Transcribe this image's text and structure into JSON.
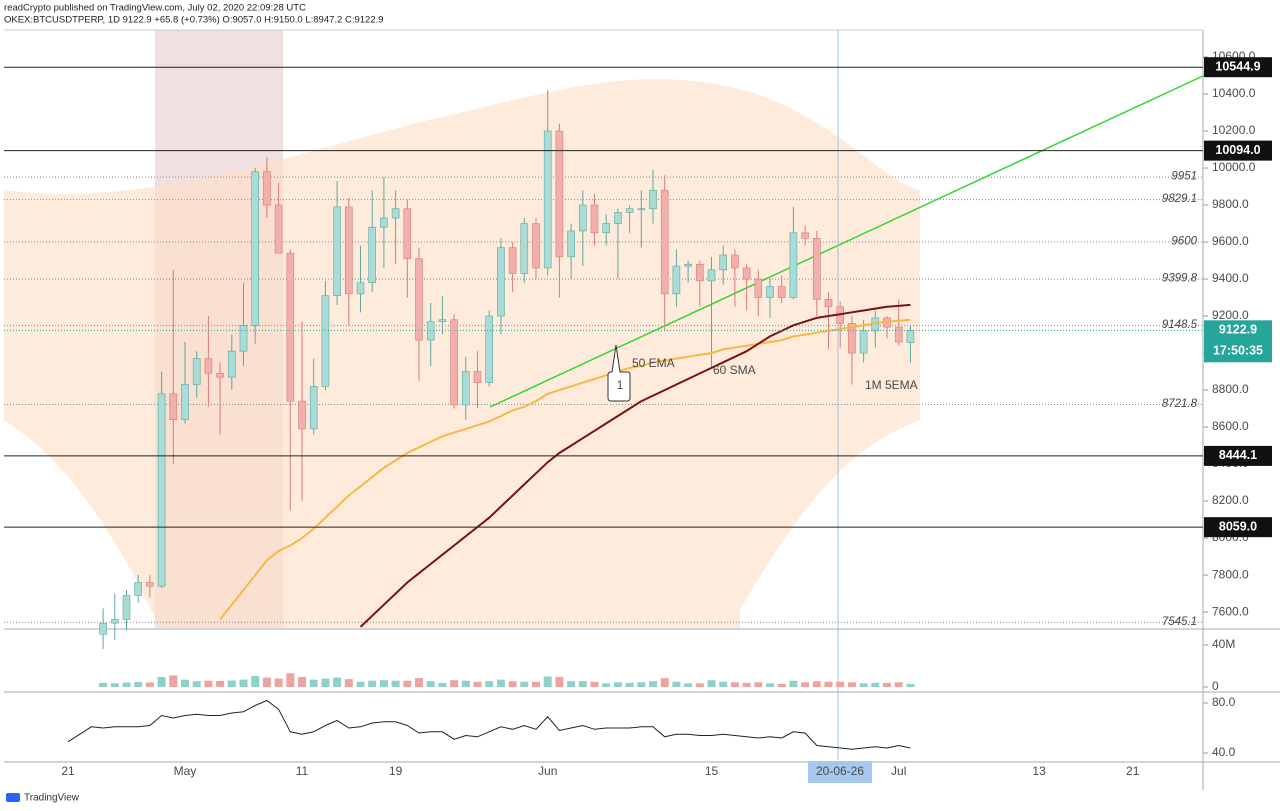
{
  "header": {
    "publisher": "readCrypto published on TradingView.com, July 02, 2020 22:09:28 UTC",
    "quote": "OKEX:BTCUSDTPERP, 1D 9122.9 +65.8 (+0.73%) O:9057.0 H:9150.0 L:8947.2 C:9122.9"
  },
  "footer": "TradingView",
  "chart_data": [
    {
      "type": "candlestick",
      "categories": [
        "21",
        null,
        null,
        null,
        null,
        null,
        null,
        null,
        null,
        null,
        "May",
        null,
        null,
        null,
        null,
        null,
        null,
        null,
        null,
        null,
        "11",
        null,
        null,
        null,
        null,
        null,
        null,
        null,
        "19",
        null,
        null,
        null,
        null,
        null,
        null,
        null,
        null,
        null,
        null,
        null,
        null,
        "Jun",
        null,
        null,
        null,
        null,
        null,
        null,
        null,
        null,
        null,
        null,
        null,
        null,
        null,
        "15",
        null,
        null,
        null,
        null,
        null,
        null,
        null,
        null,
        null,
        null,
        null,
        null,
        null,
        null,
        null,
        "Jul",
        null,
        null,
        null,
        null,
        null,
        null,
        null,
        null,
        null,
        null,
        null,
        "13",
        null,
        null,
        null,
        null,
        null,
        null,
        null,
        "21"
      ],
      "open": [
        null,
        null,
        null,
        7480,
        7540,
        7560,
        7690,
        7760,
        7740,
        8780,
        8640,
        8830,
        8970,
        8890,
        8870,
        9010,
        9150,
        9980,
        9800,
        9540,
        8740,
        8590,
        8820,
        9310,
        9790,
        9320,
        9380,
        9680,
        9730,
        9780,
        9510,
        9070,
        9170,
        9180,
        8720,
        8900,
        8840,
        9200,
        9570,
        9430,
        9700,
        9460,
        10200,
        9520,
        9660,
        9800,
        9650,
        9700,
        9760,
        9780,
        9780,
        9880,
        9320,
        9470,
        9480,
        9390,
        9450,
        9530,
        9460,
        9400,
        9300,
        9360,
        9300,
        9650,
        9620,
        9290,
        9250,
        9160,
        9000,
        9120,
        9190,
        9140,
        9057,
        null,
        null,
        null,
        null,
        null,
        null,
        null,
        null,
        null,
        null,
        null,
        null,
        null,
        null,
        null,
        null,
        null,
        null,
        null
      ],
      "high": [
        null,
        null,
        null,
        7620,
        7700,
        7720,
        7800,
        7800,
        8900,
        9450,
        9060,
        9010,
        9200,
        8950,
        9100,
        9380,
        10000,
        10060,
        9920,
        9560,
        9170,
        8970,
        9390,
        9930,
        9840,
        9580,
        9880,
        9950,
        9880,
        9830,
        9570,
        9270,
        9310,
        9210,
        8980,
        9010,
        9230,
        9620,
        9600,
        9730,
        9730,
        10420,
        10240,
        9700,
        9880,
        9860,
        9750,
        9780,
        9800,
        9880,
        9990,
        9960,
        9560,
        9500,
        9500,
        9520,
        9580,
        9560,
        9480,
        9450,
        9400,
        9420,
        9790,
        9690,
        9660,
        9330,
        9280,
        9200,
        9180,
        9230,
        9200,
        9290,
        9150,
        null,
        null,
        null,
        null,
        null,
        null,
        null,
        null,
        null,
        null,
        null,
        null,
        null,
        null,
        null,
        null,
        null,
        null,
        null
      ],
      "low": [
        null,
        null,
        null,
        7400,
        7450,
        7500,
        7650,
        7680,
        7730,
        8400,
        8620,
        8760,
        8710,
        8560,
        8800,
        8930,
        9050,
        9730,
        9540,
        8150,
        8200,
        8560,
        8800,
        9260,
        9150,
        9220,
        9330,
        9460,
        9480,
        9300,
        8850,
        8930,
        9100,
        8700,
        8640,
        8700,
        8820,
        9100,
        9330,
        9380,
        9400,
        9420,
        9300,
        9400,
        9470,
        9580,
        9580,
        9400,
        9650,
        9570,
        9700,
        9120,
        9250,
        9380,
        9250,
        8920,
        9370,
        9250,
        9230,
        9200,
        9190,
        9270,
        9290,
        9580,
        9200,
        9020,
        9030,
        8830,
        8950,
        9030,
        9080,
        9040,
        8947.2,
        null,
        null,
        null,
        null,
        null,
        null,
        null,
        null,
        null,
        null,
        null,
        null,
        null,
        null,
        null,
        null,
        null,
        null,
        null
      ],
      "close": [
        null,
        null,
        null,
        7540,
        7560,
        7690,
        7760,
        7740,
        8780,
        8640,
        8830,
        8970,
        8890,
        8870,
        9010,
        9150,
        9980,
        9800,
        9540,
        8740,
        8590,
        8820,
        9310,
        9790,
        9320,
        9380,
        9680,
        9730,
        9780,
        9510,
        9070,
        9170,
        9180,
        8720,
        8900,
        8840,
        9200,
        9570,
        9430,
        9700,
        9460,
        10200,
        9520,
        9660,
        9800,
        9650,
        9700,
        9760,
        9780,
        9780,
        9880,
        9320,
        9470,
        9480,
        9390,
        9450,
        9530,
        9460,
        9400,
        9300,
        9360,
        9300,
        9650,
        9620,
        9290,
        9250,
        9160,
        9000,
        9120,
        9190,
        9140,
        9060,
        9122.9,
        null,
        null,
        null,
        null,
        null,
        null,
        null,
        null,
        null,
        null,
        null,
        null,
        null,
        null,
        null,
        null,
        null,
        null,
        null
      ],
      "up_color": "#a9dcd6",
      "down_color": "#f2b0ad",
      "series": [
        {
          "name": "50 EMA",
          "color": "#f7b844",
          "values": [
            null,
            null,
            null,
            null,
            null,
            null,
            null,
            null,
            null,
            null,
            null,
            null,
            null,
            7560,
            7640,
            7720,
            7800,
            7880,
            7930,
            7960,
            8000,
            8050,
            8110,
            8170,
            8230,
            8280,
            8330,
            8380,
            8420,
            8460,
            8490,
            8520,
            8550,
            8570,
            8590,
            8610,
            8630,
            8660,
            8690,
            8710,
            8740,
            8780,
            8800,
            8820,
            8840,
            8860,
            8880,
            8900,
            8920,
            8930,
            8950,
            8960,
            8970,
            8980,
            8990,
            9000,
            9020,
            9030,
            9040,
            9050,
            9060,
            9070,
            9090,
            9100,
            9110,
            9120,
            9130,
            9140,
            9150,
            9160,
            9170,
            9175,
            9180,
            null,
            null,
            null,
            null,
            null,
            null,
            null,
            null,
            null,
            null,
            null,
            null,
            null,
            null,
            null,
            null,
            null,
            null,
            null
          ]
        },
        {
          "name": "60 SMA",
          "color": "#7a1212",
          "values": [
            null,
            null,
            null,
            null,
            null,
            null,
            null,
            null,
            null,
            null,
            null,
            null,
            null,
            null,
            null,
            null,
            null,
            null,
            null,
            null,
            null,
            null,
            null,
            null,
            null,
            7520,
            7580,
            7640,
            7700,
            7760,
            7810,
            7860,
            7910,
            7960,
            8010,
            8060,
            8110,
            8170,
            8230,
            8290,
            8350,
            8410,
            8460,
            8500,
            8540,
            8580,
            8620,
            8660,
            8700,
            8740,
            8770,
            8800,
            8830,
            8860,
            8890,
            8920,
            8950,
            8980,
            9010,
            9050,
            9090,
            9120,
            9150,
            9170,
            9190,
            9200,
            9210,
            9220,
            9230,
            9240,
            9250,
            9255,
            9260,
            null,
            null,
            null,
            null,
            null,
            null,
            null,
            null,
            null,
            null,
            null,
            null,
            null,
            null,
            null,
            null,
            null,
            null,
            null
          ]
        }
      ],
      "annotations": [
        "1M 5EMA",
        "1"
      ],
      "ylim": [
        7514,
        10746
      ],
      "yticks": [
        {
          "value": 7600,
          "label": "7600.0"
        },
        {
          "value": 7800,
          "label": "7800.0"
        },
        {
          "value": 8000,
          "label": "8000.0"
        },
        {
          "value": 8200,
          "label": "8200.0"
        },
        {
          "value": 8400,
          "label": "8400.0"
        },
        {
          "value": 8600,
          "label": "8600.0"
        },
        {
          "value": 8800,
          "label": "8800.0"
        },
        {
          "value": 9000,
          "label": "9000.0"
        },
        {
          "value": 9200,
          "label": "9200.0"
        },
        {
          "value": 9400,
          "label": "9400.0"
        },
        {
          "value": 9600,
          "label": "9600.0"
        },
        {
          "value": 9800,
          "label": "9800.0"
        },
        {
          "value": 10000,
          "label": "10000.0"
        },
        {
          "value": 10200,
          "label": "10200.0"
        },
        {
          "value": 10400,
          "label": "10400.0"
        },
        {
          "value": 10600,
          "label": "10600.0"
        }
      ],
      "levels": [
        9951,
        9829.1,
        9600,
        9399.8,
        9148.5,
        8721.8,
        7545.1
      ],
      "boxed_levels": [
        10544.9,
        {
          "value": 10094,
          "label": "10094.0"
        },
        8444.1,
        {
          "value": 8059,
          "label": "8059.0"
        }
      ],
      "last_price": 9122.9,
      "last_price_color": "#26a69a",
      "countdown": "17:50:35",
      "crosshair_label": "20-06-26"
    },
    {
      "type": "volume",
      "values": [
        null,
        null,
        null,
        4000000,
        3500000,
        4200000,
        4800000,
        4300000,
        9500000,
        11000000,
        7000000,
        5500000,
        6000000,
        5800000,
        6200000,
        7000000,
        10500000,
        9000000,
        8000000,
        13000000,
        9500000,
        7000000,
        8000000,
        9000000,
        7500000,
        5000000,
        6000000,
        6500000,
        6000000,
        6000000,
        8500000,
        5500000,
        4000000,
        6500000,
        6000000,
        5000000,
        5500000,
        7000000,
        5500000,
        5000000,
        5000000,
        10000000,
        9500000,
        5500000,
        5500000,
        5000000,
        3500000,
        4500000,
        4000000,
        4500000,
        5500000,
        8500000,
        5000000,
        3500000,
        3500000,
        6500000,
        5000000,
        4500000,
        4000000,
        4500000,
        3500000,
        3000000,
        6000000,
        4500000,
        5500000,
        5000000,
        5000000,
        4500000,
        3500000,
        4000000,
        4000000,
        4500000,
        3000000,
        null,
        null,
        null,
        null,
        null,
        null,
        null,
        null,
        null,
        null,
        null,
        null,
        null,
        null,
        null,
        null,
        null,
        null,
        null
      ],
      "ylim": [
        -2860000,
        47620000
      ],
      "yticks": [
        0,
        {
          "value": 40000000,
          "label": "40M"
        }
      ]
    },
    {
      "type": "line",
      "values": [
        49,
        55,
        61,
        60,
        61,
        61,
        61,
        62,
        70,
        68,
        70,
        71,
        70,
        70,
        72,
        73,
        78,
        82,
        75,
        57,
        55,
        57,
        62,
        66,
        60,
        61,
        64,
        65,
        65,
        62,
        56,
        57,
        57,
        51,
        54,
        53,
        57,
        61,
        59,
        62,
        59,
        69,
        58,
        60,
        62,
        59,
        60,
        60,
        60,
        61,
        61,
        53,
        55,
        55,
        54,
        54,
        55,
        54,
        53,
        52,
        53,
        52,
        57,
        56,
        46,
        45,
        44,
        43,
        44,
        45,
        44,
        46,
        44,
        null,
        null,
        null,
        null,
        null,
        null,
        null,
        null,
        null,
        null,
        null,
        null,
        null,
        null,
        null,
        null,
        null,
        null,
        null
      ],
      "color": "#222222",
      "ylim": [
        34.4,
        86.4
      ],
      "yticks": [
        {
          "value": 80,
          "label": "80.0"
        },
        {
          "value": 40,
          "label": "40.0"
        }
      ]
    }
  ]
}
